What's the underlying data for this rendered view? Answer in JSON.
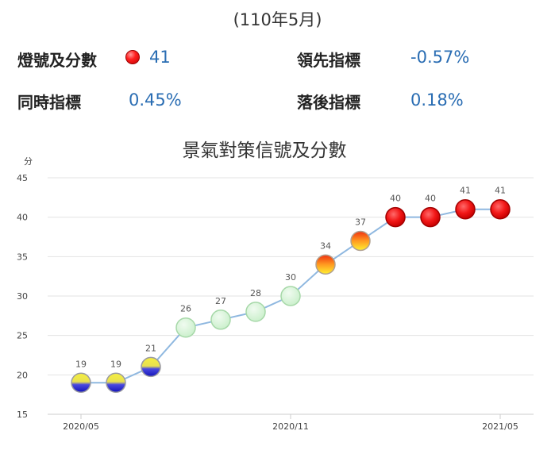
{
  "header": {
    "period": "(110年5月)"
  },
  "stats": {
    "signal_label": "燈號及分數",
    "signal_score": "41",
    "signal_color": "#ff2020",
    "leading_label": "領先指標",
    "leading_value": "-0.57%",
    "coincident_label": "同時指標",
    "coincident_value": "0.45%",
    "lagging_label": "落後指標",
    "lagging_value": "0.18%"
  },
  "chart_data": {
    "type": "line",
    "title": "景氣對策信號及分數",
    "ylabel": "分",
    "xlabel": "",
    "ylim": [
      15,
      45
    ],
    "yticks": [
      15,
      20,
      25,
      30,
      35,
      40,
      45
    ],
    "x": [
      "2020/05",
      "2020/06",
      "2020/07",
      "2020/08",
      "2020/09",
      "2020/10",
      "2020/11",
      "2020/12",
      "2021/01",
      "2021/02",
      "2021/03",
      "2021/04",
      "2021/05"
    ],
    "xtick_labels": [
      "2020/05",
      "2020/11",
      "2021/05"
    ],
    "values": [
      19,
      19,
      21,
      26,
      27,
      28,
      30,
      34,
      37,
      40,
      40,
      41,
      41
    ],
    "signals": [
      "yellow-blue",
      "yellow-blue",
      "yellow-blue",
      "green",
      "green",
      "green",
      "green",
      "yellow-red",
      "yellow-red",
      "red",
      "red",
      "red",
      "red"
    ],
    "line_color": "#8fb8e0",
    "grid": "horizontal"
  }
}
